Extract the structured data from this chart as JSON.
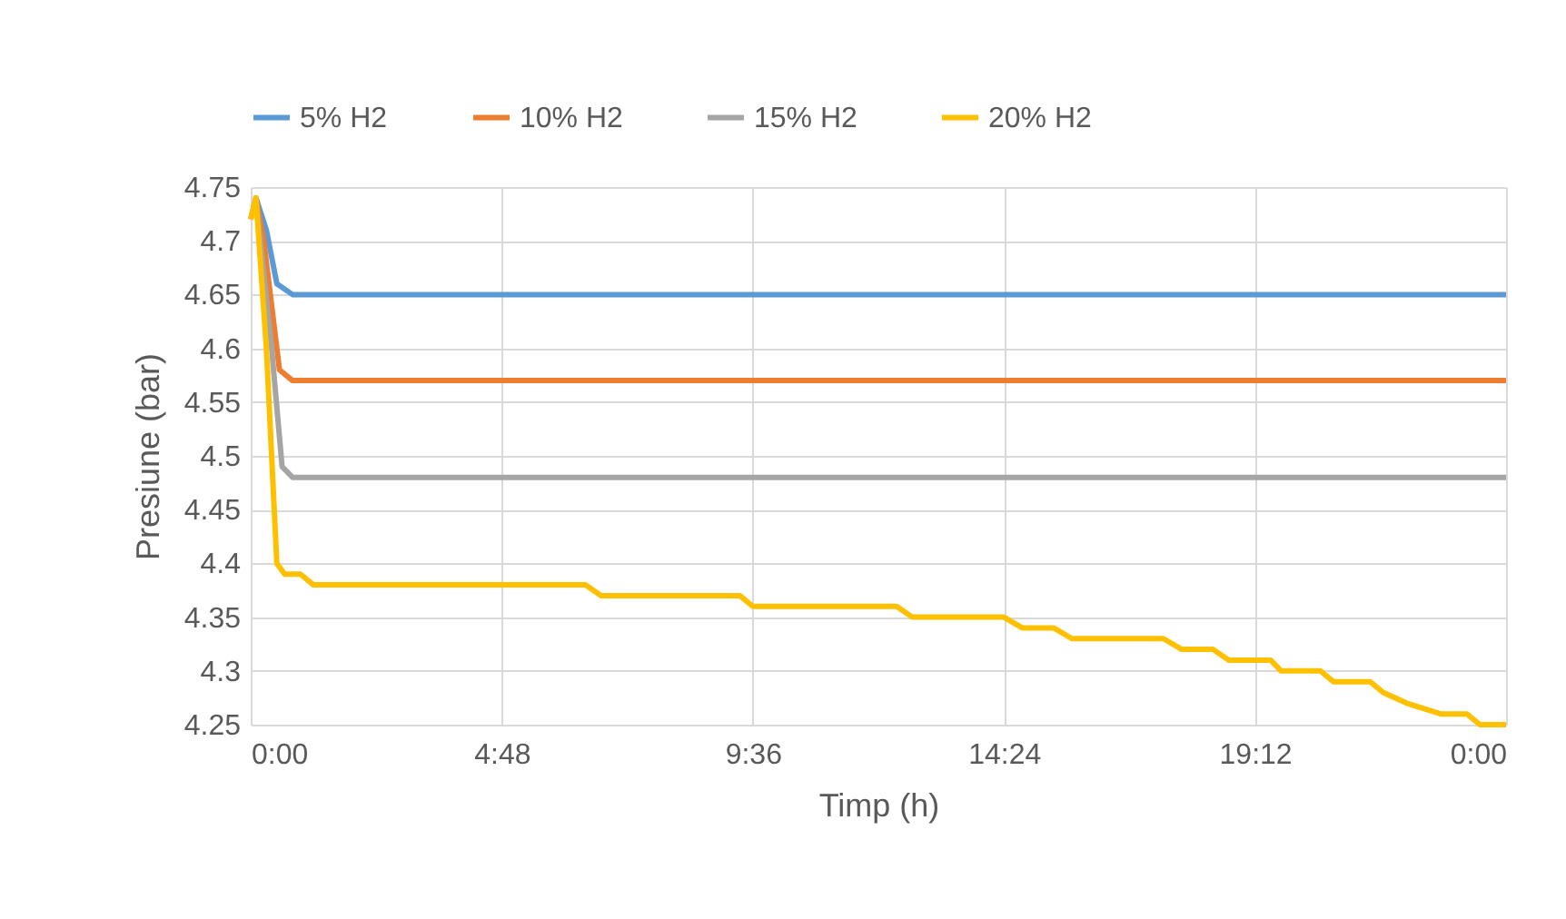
{
  "chart_data": {
    "type": "line",
    "xlabel": "Timp (h)",
    "ylabel": "Presiune (bar)",
    "xlim": [
      0,
      24
    ],
    "xticks": [
      {
        "value": 0,
        "label": "0:00"
      },
      {
        "value": 4.8,
        "label": "4:48"
      },
      {
        "value": 9.6,
        "label": "9:36"
      },
      {
        "value": 14.4,
        "label": "14:24"
      },
      {
        "value": 19.2,
        "label": "19:12"
      },
      {
        "value": 24,
        "label": "0:00"
      }
    ],
    "ylim": [
      4.25,
      4.75
    ],
    "yticks": [
      4.25,
      4.3,
      4.35,
      4.4,
      4.45,
      4.5,
      4.55,
      4.6,
      4.65,
      4.7,
      4.75
    ],
    "grid": true,
    "legend": "top",
    "marker": "none",
    "line_style": "solid",
    "series": [
      {
        "name": "5% H2",
        "color": "#5b9bd5",
        "x": [
          0.1,
          0.3,
          0.5,
          0.8,
          24
        ],
        "values": [
          4.74,
          4.71,
          4.66,
          4.65,
          4.65
        ]
      },
      {
        "name": "10% H2",
        "color": "#ed7d31",
        "x": [
          0,
          0.1,
          0.25,
          0.55,
          0.8,
          24
        ],
        "values": [
          4.72,
          4.74,
          4.7,
          4.58,
          4.57,
          4.57
        ]
      },
      {
        "name": "15% H2",
        "color": "#a5a5a5",
        "x": [
          0.1,
          0.4,
          0.6,
          0.8,
          24
        ],
        "values": [
          4.74,
          4.6,
          4.49,
          4.48,
          4.48
        ]
      },
      {
        "name": "20% H2",
        "color": "#ffc000",
        "x": [
          0,
          0.1,
          0.3,
          0.5,
          0.65,
          0.95,
          1.2,
          6.4,
          6.7,
          9.35,
          9.6,
          12.35,
          12.65,
          14.4,
          14.75,
          15.35,
          15.7,
          17.45,
          17.8,
          18.4,
          18.7,
          19.5,
          19.7,
          20.45,
          20.7,
          21.4,
          21.65,
          22.1,
          22.75,
          23.25,
          23.5,
          24
        ],
        "values": [
          4.72,
          4.74,
          4.6,
          4.4,
          4.39,
          4.39,
          4.38,
          4.38,
          4.37,
          4.37,
          4.36,
          4.36,
          4.35,
          4.35,
          4.34,
          4.34,
          4.33,
          4.33,
          4.32,
          4.32,
          4.31,
          4.31,
          4.3,
          4.3,
          4.29,
          4.29,
          4.28,
          4.27,
          4.26,
          4.26,
          4.25,
          4.25
        ]
      }
    ]
  }
}
